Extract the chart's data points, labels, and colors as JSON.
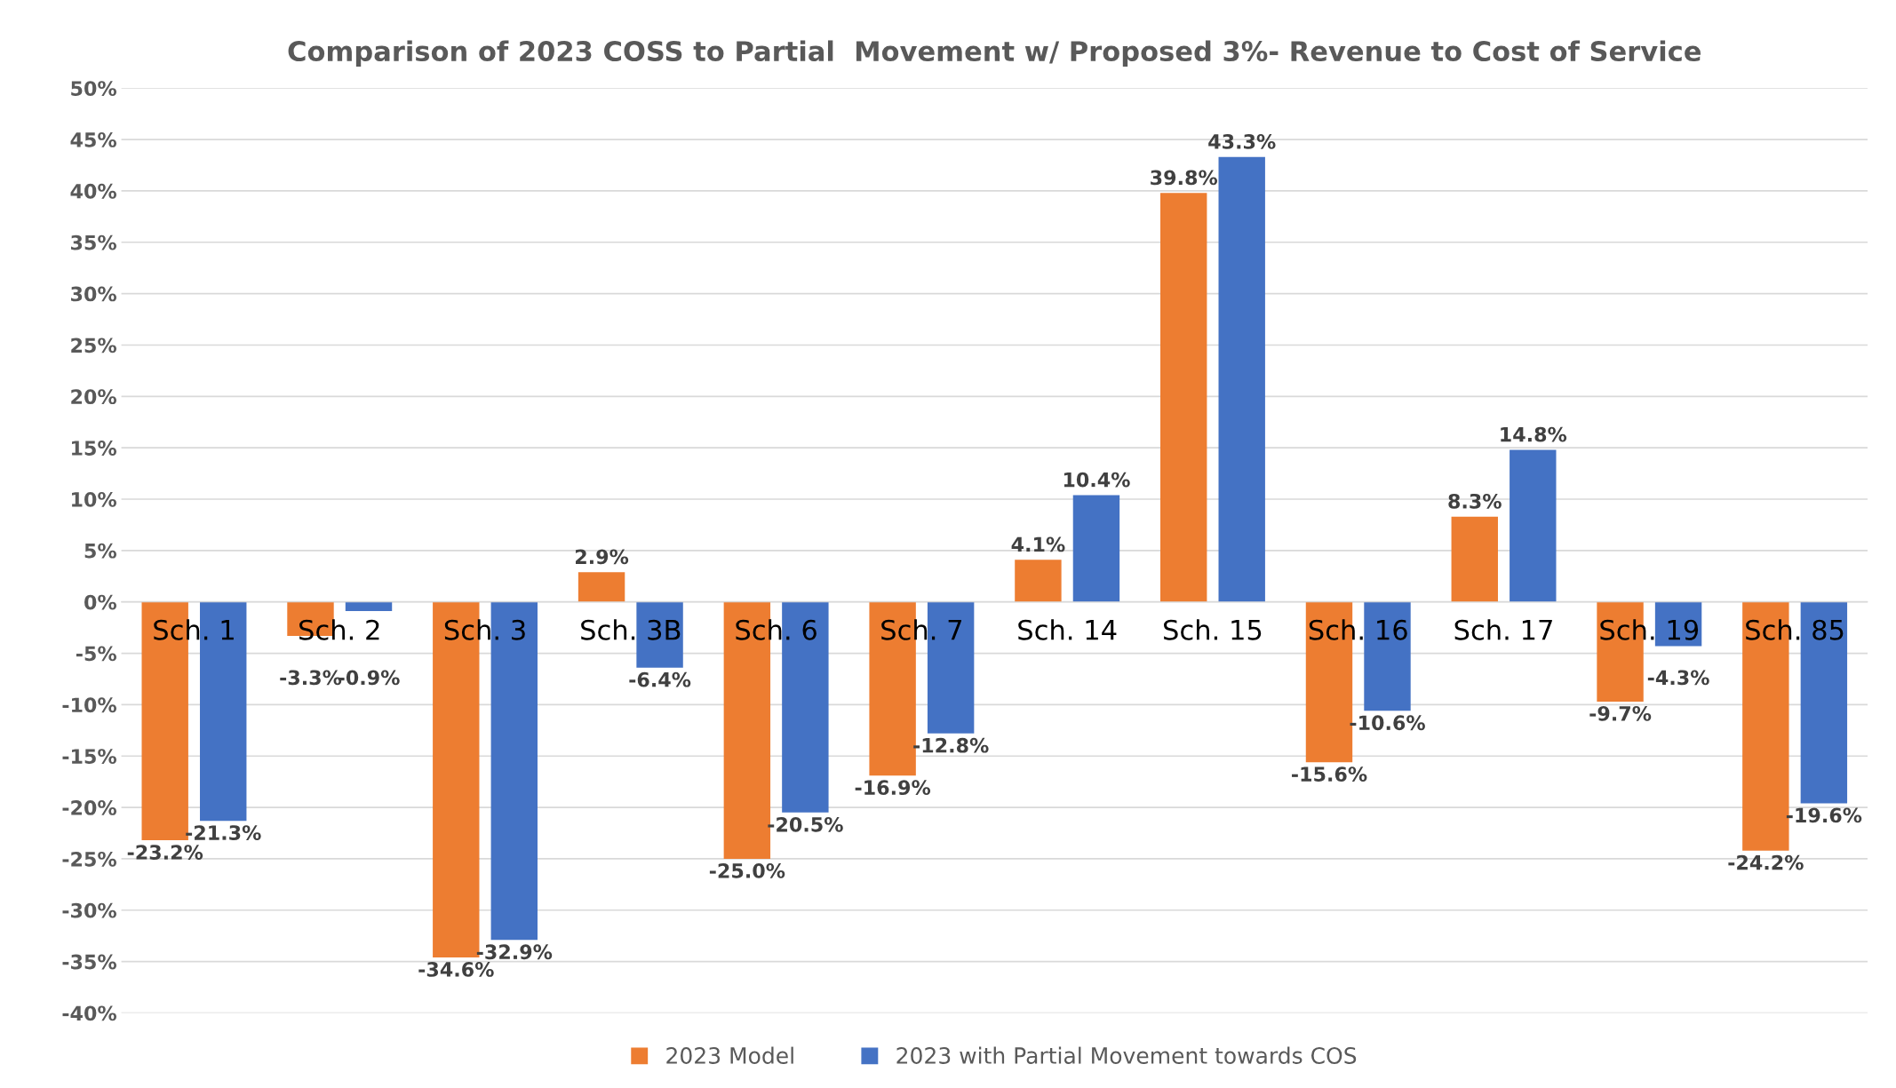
{
  "chart_data": {
    "type": "bar",
    "title": "Comparison of 2023 COSS to Partial  Movement w/ Proposed 3%- Revenue to Cost of Service",
    "categories": [
      "Sch. 1",
      "Sch. 2",
      "Sch. 3",
      "Sch. 3B",
      "Sch. 6",
      "Sch. 7",
      "Sch. 14",
      "Sch. 15",
      "Sch. 16",
      "Sch. 17",
      "Sch. 19",
      "Sch. 85"
    ],
    "series": [
      {
        "name": "2023 Model",
        "color": "#ed7d31",
        "values": [
          -23.2,
          -3.3,
          -34.6,
          2.9,
          -25.0,
          -16.9,
          4.1,
          39.8,
          -15.6,
          8.3,
          -9.7,
          -24.2
        ],
        "value_labels": [
          "-23.2%",
          "-3.3%",
          "-34.6%",
          "2.9%",
          "-25.0%",
          "-16.9%",
          "4.1%",
          "39.8%",
          "-15.6%",
          "8.3%",
          "-9.7%",
          "-24.2%"
        ]
      },
      {
        "name": "2023 with Partial Movement towards COS",
        "color": "#4472c4",
        "values": [
          -21.3,
          -0.9,
          -32.9,
          -6.4,
          -20.5,
          -12.8,
          10.4,
          43.3,
          -10.6,
          14.8,
          -4.3,
          -19.6
        ],
        "value_labels": [
          "-21.3%",
          "-0.9%",
          "-32.9%",
          "-6.4%",
          "-20.5%",
          "-12.8%",
          "10.4%",
          "43.3%",
          "-10.6%",
          "14.8%",
          "-4.3%",
          "-19.6%"
        ]
      }
    ],
    "ylim": [
      -40,
      50
    ],
    "yticks": [
      {
        "value": -40,
        "label": "-40%"
      },
      {
        "value": -35,
        "label": "-35%"
      },
      {
        "value": -30,
        "label": "-30%"
      },
      {
        "value": -25,
        "label": "-25%"
      },
      {
        "value": -20,
        "label": "-20%"
      },
      {
        "value": -15,
        "label": "-15%"
      },
      {
        "value": -10,
        "label": "-10%"
      },
      {
        "value": -5,
        "label": "-5%"
      },
      {
        "value": 0,
        "label": "0%"
      },
      {
        "value": 5,
        "label": "5%"
      },
      {
        "value": 10,
        "label": "10%"
      },
      {
        "value": 15,
        "label": "15%"
      },
      {
        "value": 20,
        "label": "20%"
      },
      {
        "value": 25,
        "label": "25%"
      },
      {
        "value": 30,
        "label": "30%"
      },
      {
        "value": 35,
        "label": "35%"
      },
      {
        "value": 40,
        "label": "40%"
      },
      {
        "value": 45,
        "label": "45%"
      },
      {
        "value": 50,
        "label": "50%"
      }
    ],
    "grid": "y",
    "legend": "bottom"
  }
}
